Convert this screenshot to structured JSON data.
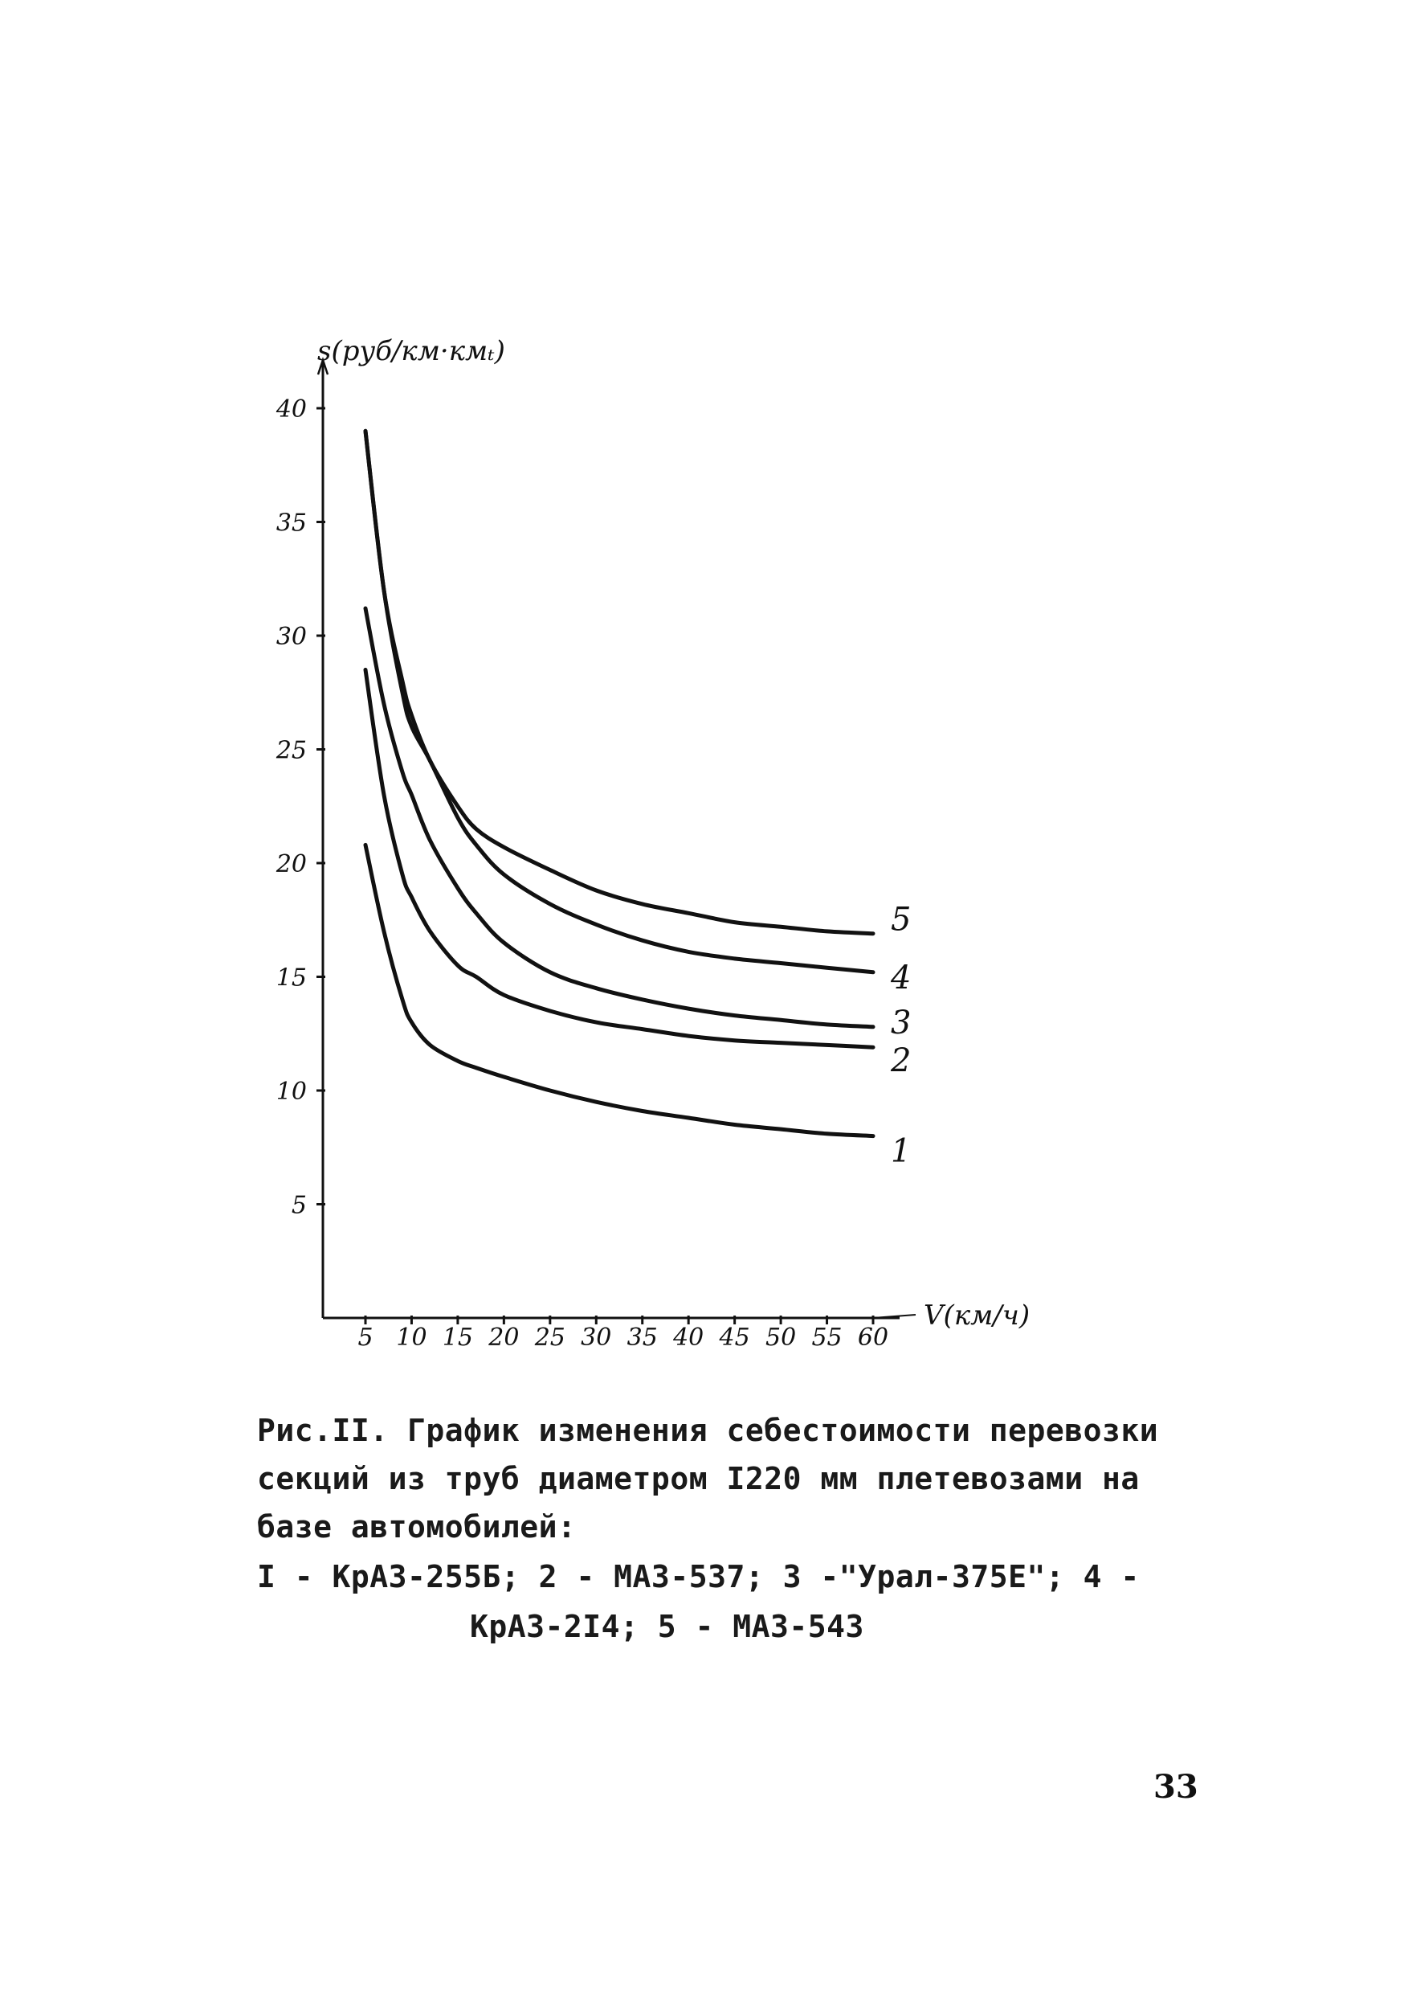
{
  "chart_data": {
    "type": "line",
    "ylabel": "s(руб/км·кмₜ)",
    "xlabel": "V(км/ч)",
    "xlim": [
      0,
      60
    ],
    "ylim": [
      0,
      40
    ],
    "x_ticks": [
      5,
      10,
      15,
      20,
      25,
      30,
      35,
      40,
      45,
      50,
      55,
      60
    ],
    "x_tick_labels": [
      "5",
      "10",
      "15",
      "20",
      "25",
      "30",
      "35",
      "40",
      "45",
      "50",
      "55",
      "60"
    ],
    "y_ticks": [
      5,
      10,
      15,
      20,
      25,
      30,
      35,
      40
    ],
    "y_tick_labels": [
      "5",
      "10",
      "15",
      "20",
      "25",
      "30",
      "35",
      "40"
    ],
    "grid": false,
    "series": [
      {
        "name": "1",
        "x": [
          5,
          7,
          9,
          10,
          12,
          15,
          17,
          20,
          25,
          30,
          35,
          40,
          45,
          50,
          55,
          60
        ],
        "y": [
          20.8,
          17.0,
          14.0,
          13.0,
          12.0,
          11.3,
          11.0,
          10.6,
          10.0,
          9.5,
          9.1,
          8.8,
          8.5,
          8.3,
          8.1,
          8.0
        ]
      },
      {
        "name": "2",
        "x": [
          5,
          7,
          9,
          10,
          12,
          15,
          17,
          20,
          25,
          30,
          35,
          40,
          45,
          50,
          55,
          60
        ],
        "y": [
          28.5,
          23.0,
          19.5,
          18.5,
          17.0,
          15.5,
          15.0,
          14.2,
          13.5,
          13.0,
          12.7,
          12.4,
          12.2,
          12.1,
          12.0,
          11.9
        ]
      },
      {
        "name": "3",
        "x": [
          5,
          7,
          9,
          10,
          12,
          15,
          17,
          20,
          25,
          30,
          35,
          40,
          45,
          50,
          55,
          60
        ],
        "y": [
          31.2,
          27.0,
          24.0,
          23.0,
          21.0,
          18.9,
          17.8,
          16.5,
          15.2,
          14.5,
          14.0,
          13.6,
          13.3,
          13.1,
          12.9,
          12.8
        ]
      },
      {
        "name": "4",
        "x": [
          5,
          7,
          9,
          10,
          12,
          15,
          17,
          20,
          25,
          30,
          35,
          40,
          45,
          50,
          55,
          60
        ],
        "y": [
          39.0,
          32.0,
          27.5,
          26.0,
          24.5,
          22.0,
          20.8,
          19.5,
          18.2,
          17.3,
          16.6,
          16.1,
          15.8,
          15.6,
          15.4,
          15.2
        ]
      },
      {
        "name": "5",
        "x": [
          5,
          7,
          9,
          10,
          12,
          15,
          17,
          20,
          25,
          30,
          35,
          40,
          45,
          50,
          55,
          60
        ],
        "y": [
          39.0,
          32.0,
          28.0,
          26.5,
          24.5,
          22.5,
          21.5,
          20.7,
          19.7,
          18.8,
          18.2,
          17.8,
          17.4,
          17.2,
          17.0,
          16.9
        ]
      }
    ]
  },
  "caption": {
    "line1": "Рис.II. График изменения себестоимости перевозки",
    "line2": "секций из труб диаметром I220 мм плетевозами на",
    "line3": "базе автомобилей:",
    "line4": "I - КрАЗ-255Б; 2 - МАЗ-537; 3 -\"Урал-375Е\"; 4 -",
    "line5": "КрАЗ-2I4; 5 - МАЗ-543"
  },
  "page_number": "33"
}
